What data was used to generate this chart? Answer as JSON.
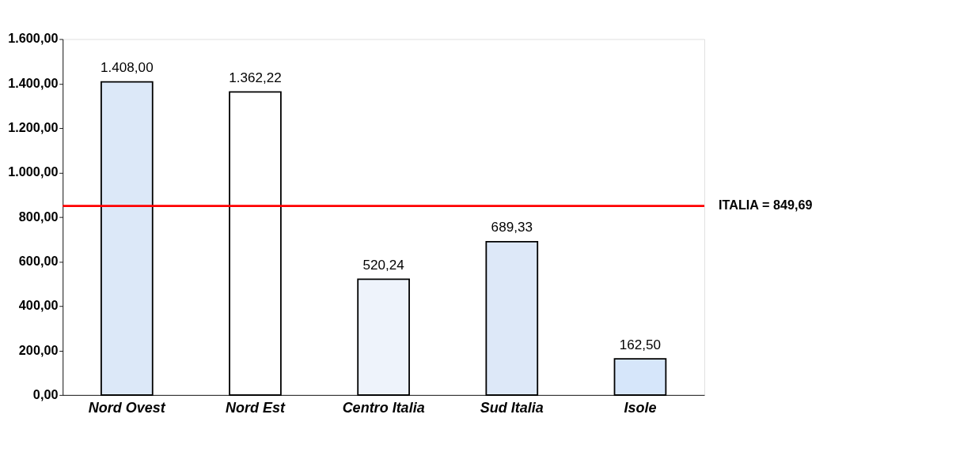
{
  "chart_data": {
    "type": "bar",
    "categories": [
      "Nord Ovest",
      "Nord Est",
      "Centro Italia",
      "Sud Italia",
      "Isole"
    ],
    "values": [
      1408.0,
      1362.22,
      520.24,
      689.33,
      162.5
    ],
    "colors": [
      "#dce8f8",
      "#ffffff",
      "#eef3fb",
      "#dde8f8",
      "#d6e6fa"
    ],
    "value_labels": [
      "1.408,00",
      "1.362,22",
      "520,24",
      "689,33",
      "162,50"
    ],
    "ylim": [
      0,
      1600
    ],
    "yticks": [
      {
        "value": 0,
        "label": "0,00"
      },
      {
        "value": 200,
        "label": "200,00"
      },
      {
        "value": 400,
        "label": "400,00"
      },
      {
        "value": 600,
        "label": "600,00"
      },
      {
        "value": 800,
        "label": "800,00"
      },
      {
        "value": 1000,
        "label": "1.000,00"
      },
      {
        "value": 1200,
        "label": "1.200,00"
      },
      {
        "value": 1400,
        "label": "1.400,00"
      },
      {
        "value": 1600,
        "label": "1.600,00"
      }
    ],
    "ref_lines": [
      {
        "axis": "y",
        "value": 849.69,
        "label": "ITALIA = 849,69",
        "color": "#ff0000"
      }
    ],
    "grid": false
  }
}
